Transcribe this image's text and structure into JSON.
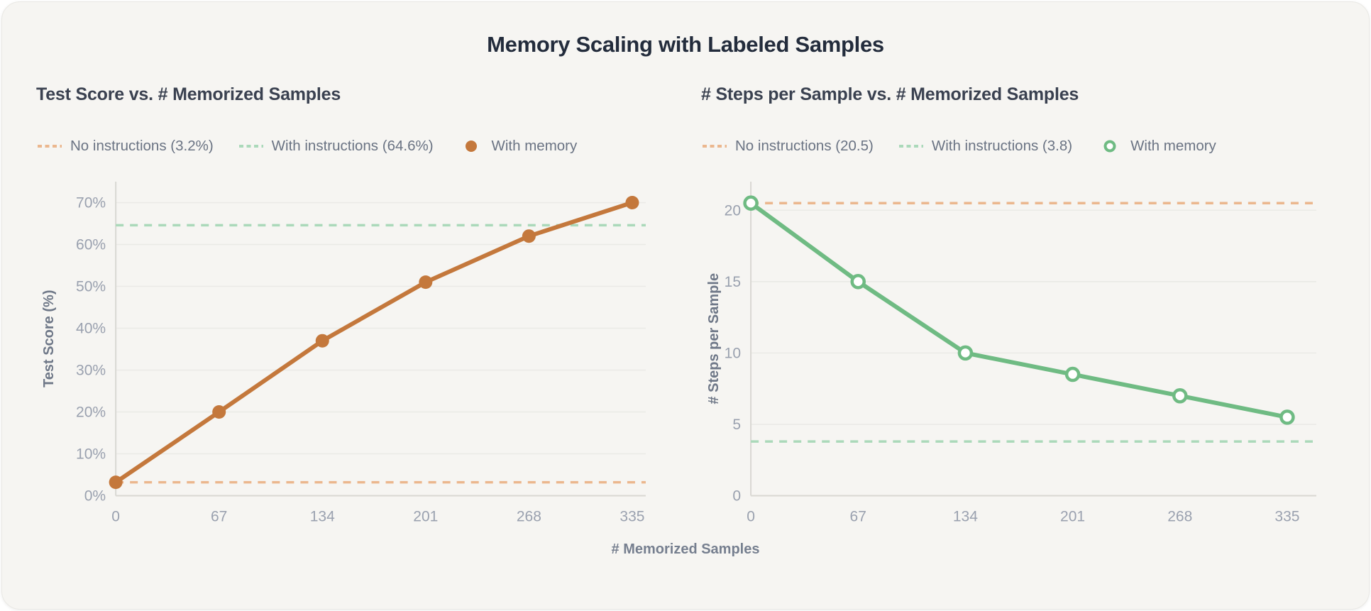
{
  "page": {
    "title": "Memory Scaling with Labeled Samples",
    "shared_xlabel": "# Memorized Samples"
  },
  "colors": {
    "orange_series": "#C4783C",
    "orange_dashed": "#EBB78E",
    "green_series": "#6FBB83",
    "green_dashed": "#ABD9BA",
    "card_background": "#F6F5F2",
    "title_text": "#232C3C",
    "subtitle_text": "#3A4150",
    "legend_text": "#6A7383",
    "tick_text": "#9AA1AF",
    "axis_label_text": "#6F7888",
    "gridline": "#EAEAE6",
    "spine": "#D9D8D3"
  },
  "chart_data": [
    {
      "type": "line",
      "title": "Test Score vs. # Memorized Samples",
      "xlabel": "# Memorized Samples",
      "ylabel": "Test Score (%)",
      "x": [
        0,
        67,
        134,
        201,
        268,
        335
      ],
      "xticks": [
        0,
        67,
        134,
        201,
        268,
        335
      ],
      "yticks": [
        0,
        10,
        20,
        30,
        40,
        50,
        60,
        70
      ],
      "ylim": [
        0,
        75
      ],
      "ytick_suffix": "%",
      "grid": true,
      "legend_position": "top",
      "series": [
        {
          "name": "With memory",
          "values": [
            3.2,
            20,
            37,
            51,
            62,
            70
          ],
          "color": "#C4783C",
          "marker": "filled"
        }
      ],
      "reference_lines": [
        {
          "name": "No instructions (3.2%)",
          "value": 3.2,
          "color": "#EBB78E",
          "style": "dashed"
        },
        {
          "name": "With instructions (64.6%)",
          "value": 64.6,
          "color": "#ABD9BA",
          "style": "dashed"
        }
      ]
    },
    {
      "type": "line",
      "title": "# Steps per Sample vs. # Memorized Samples",
      "xlabel": "# Memorized Samples",
      "ylabel": "# Steps per Sample",
      "x": [
        0,
        67,
        134,
        201,
        268,
        335
      ],
      "xticks": [
        0,
        67,
        134,
        201,
        268,
        335
      ],
      "yticks": [
        0,
        5,
        10,
        15,
        20
      ],
      "ylim": [
        0,
        22
      ],
      "ytick_suffix": "",
      "grid": true,
      "legend_position": "top",
      "series": [
        {
          "name": "With memory",
          "values": [
            20.5,
            15,
            10,
            8.5,
            7,
            5.5
          ],
          "color": "#6FBB83",
          "marker": "open"
        }
      ],
      "reference_lines": [
        {
          "name": "No instructions (20.5)",
          "value": 20.5,
          "color": "#EBB78E",
          "style": "dashed"
        },
        {
          "name": "With instructions (3.8)",
          "value": 3.8,
          "color": "#ABD9BA",
          "style": "dashed"
        }
      ]
    }
  ]
}
